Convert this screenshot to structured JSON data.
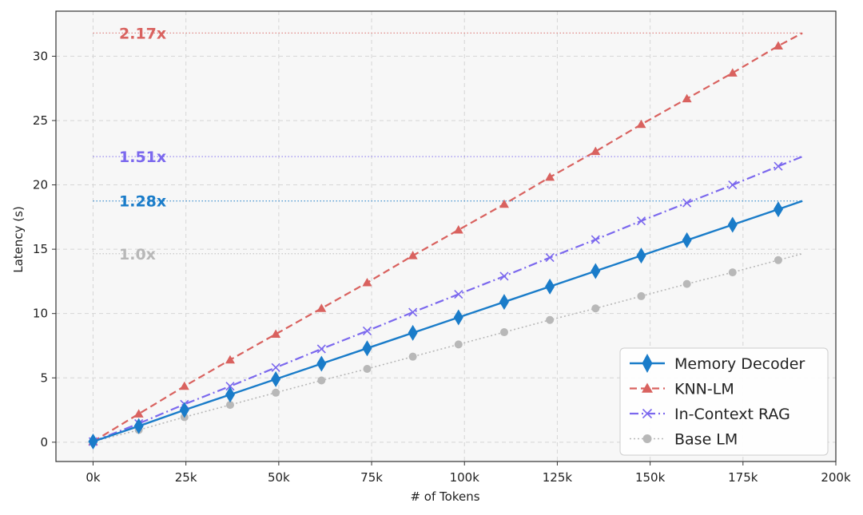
{
  "chart_data": {
    "type": "line",
    "xlabel": "# of Tokens",
    "ylabel": "Latency (s)",
    "xlim": [
      -10000,
      200000
    ],
    "ylim": [
      -1.5,
      33.5
    ],
    "x_ticks": [
      0,
      25000,
      50000,
      75000,
      100000,
      125000,
      150000,
      175000,
      200000
    ],
    "x_tick_labels": [
      "0k",
      "25k",
      "50k",
      "75k",
      "100k",
      "125k",
      "150k",
      "175k",
      "200k"
    ],
    "y_ticks": [
      0,
      5,
      10,
      15,
      20,
      25,
      30
    ],
    "y_tick_labels": [
      "0",
      "5",
      "10",
      "15",
      "20",
      "25",
      "30"
    ],
    "grid": true,
    "legend_position": "lower-right",
    "x": [
      0,
      12300,
      24600,
      36900,
      49200,
      61500,
      73800,
      86100,
      98400,
      110700,
      123000,
      135300,
      147600,
      159900,
      172200,
      184500,
      191000
    ],
    "series": [
      {
        "name": "Memory Decoder",
        "color": "#1a7cc9",
        "line_style": "solid",
        "marker": "diamond",
        "values": [
          0.05,
          1.25,
          2.5,
          3.7,
          4.9,
          6.1,
          7.3,
          8.5,
          9.7,
          10.9,
          12.1,
          13.3,
          14.5,
          15.7,
          16.9,
          18.1,
          18.75
        ]
      },
      {
        "name": "KNN-LM",
        "color": "#d9625f",
        "line_style": "dashed",
        "marker": "triangle",
        "values": [
          0.05,
          2.2,
          4.35,
          6.4,
          8.4,
          10.4,
          12.4,
          14.5,
          16.5,
          18.5,
          20.6,
          22.6,
          24.7,
          26.7,
          28.7,
          30.8,
          31.8
        ]
      },
      {
        "name": "In-Context RAG",
        "color": "#7b68ee",
        "line_style": "dashdot",
        "marker": "x",
        "values": [
          0.05,
          1.45,
          2.95,
          4.35,
          5.8,
          7.25,
          8.65,
          10.1,
          11.5,
          12.9,
          14.35,
          15.75,
          17.2,
          18.6,
          20.0,
          21.45,
          22.2
        ]
      },
      {
        "name": "Base LM",
        "color": "#b8b8b8",
        "line_style": "dotted",
        "marker": "circle",
        "values": [
          0.05,
          0.95,
          1.95,
          2.9,
          3.85,
          4.8,
          5.7,
          6.65,
          7.6,
          8.55,
          9.5,
          10.4,
          11.35,
          12.3,
          13.2,
          14.15,
          14.65
        ]
      }
    ],
    "annotations": [
      {
        "text": "2.17x",
        "y": 31.8,
        "color": "#d9625f",
        "text_opacity": 1
      },
      {
        "text": "1.51x",
        "y": 22.2,
        "color": "#7b68ee",
        "text_opacity": 1
      },
      {
        "text": "1.28x",
        "y": 18.75,
        "color": "#1a7cc9",
        "text_opacity": 1
      },
      {
        "text": "1.0x",
        "y": 14.65,
        "color": "#b8b8b8",
        "text_opacity": 1
      }
    ]
  }
}
